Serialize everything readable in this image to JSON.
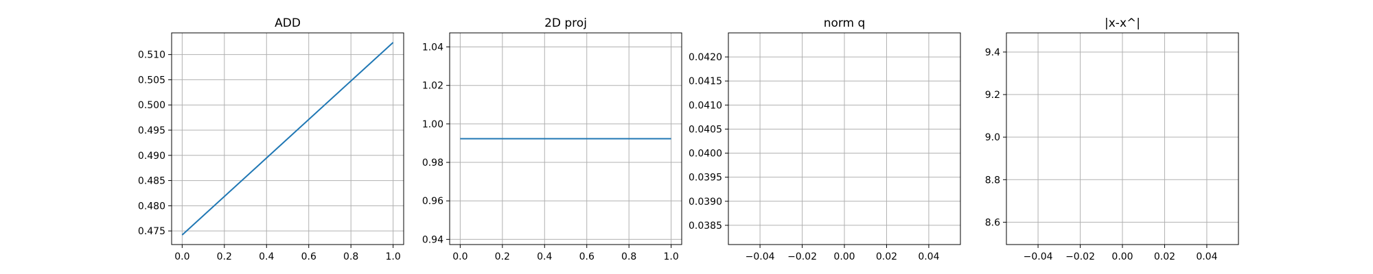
{
  "chart_data": [
    {
      "type": "line",
      "title": "ADD",
      "xlabel": "",
      "ylabel": "",
      "x": [
        0.0,
        1.0
      ],
      "series": [
        {
          "values": [
            0.4742,
            0.5124
          ],
          "color": "#1f77b4"
        }
      ],
      "xlim": [
        -0.05,
        1.05
      ],
      "ylim": [
        0.4723,
        0.5143
      ],
      "xticks": [
        0.0,
        0.2,
        0.4,
        0.6,
        0.8,
        1.0
      ],
      "xtick_labels": [
        "0.0",
        "0.2",
        "0.4",
        "0.6",
        "0.8",
        "1.0"
      ],
      "yticks": [
        0.475,
        0.48,
        0.485,
        0.49,
        0.495,
        0.5,
        0.505,
        0.51
      ],
      "ytick_labels": [
        "0.475",
        "0.480",
        "0.485",
        "0.490",
        "0.495",
        "0.500",
        "0.505",
        "0.510"
      ],
      "grid": true
    },
    {
      "type": "line",
      "title": "2D proj",
      "xlabel": "",
      "ylabel": "",
      "x": [
        0.0,
        1.0
      ],
      "series": [
        {
          "values": [
            0.9923,
            0.9923
          ],
          "color": "#1f77b4"
        }
      ],
      "xlim": [
        -0.05,
        1.05
      ],
      "ylim": [
        0.9373,
        1.0473
      ],
      "xticks": [
        0.0,
        0.2,
        0.4,
        0.6,
        0.8,
        1.0
      ],
      "xtick_labels": [
        "0.0",
        "0.2",
        "0.4",
        "0.6",
        "0.8",
        "1.0"
      ],
      "yticks": [
        0.94,
        0.96,
        0.98,
        1.0,
        1.02,
        1.04
      ],
      "ytick_labels": [
        "0.94",
        "0.96",
        "0.98",
        "1.00",
        "1.02",
        "1.04"
      ],
      "grid": true
    },
    {
      "type": "line",
      "title": "norm q",
      "xlabel": "",
      "ylabel": "",
      "x": [],
      "series": [
        {
          "values": [],
          "color": "#1f77b4"
        }
      ],
      "xlim": [
        -0.055,
        0.055
      ],
      "ylim": [
        0.0381,
        0.0425
      ],
      "xticks": [
        -0.04,
        -0.02,
        0.0,
        0.02,
        0.04
      ],
      "xtick_labels": [
        "−0.04",
        "−0.02",
        "0.00",
        "0.02",
        "0.04"
      ],
      "yticks": [
        0.0385,
        0.039,
        0.0395,
        0.04,
        0.0405,
        0.041,
        0.0415,
        0.042
      ],
      "ytick_labels": [
        "0.0385",
        "0.0390",
        "0.0395",
        "0.0400",
        "0.0405",
        "0.0410",
        "0.0415",
        "0.0420"
      ],
      "grid": true
    },
    {
      "type": "line",
      "title": "|x-x^|",
      "xlabel": "",
      "ylabel": "",
      "x": [],
      "series": [
        {
          "values": [],
          "color": "#1f77b4"
        }
      ],
      "xlim": [
        -0.055,
        0.055
      ],
      "ylim": [
        8.495,
        9.49
      ],
      "xticks": [
        -0.04,
        -0.02,
        0.0,
        0.02,
        0.04
      ],
      "xtick_labels": [
        "−0.04",
        "−0.02",
        "0.00",
        "0.02",
        "0.04"
      ],
      "yticks": [
        8.6,
        8.8,
        9.0,
        9.2,
        9.4
      ],
      "ytick_labels": [
        "8.6",
        "8.8",
        "9.0",
        "9.2",
        "9.4"
      ],
      "grid": true
    }
  ]
}
